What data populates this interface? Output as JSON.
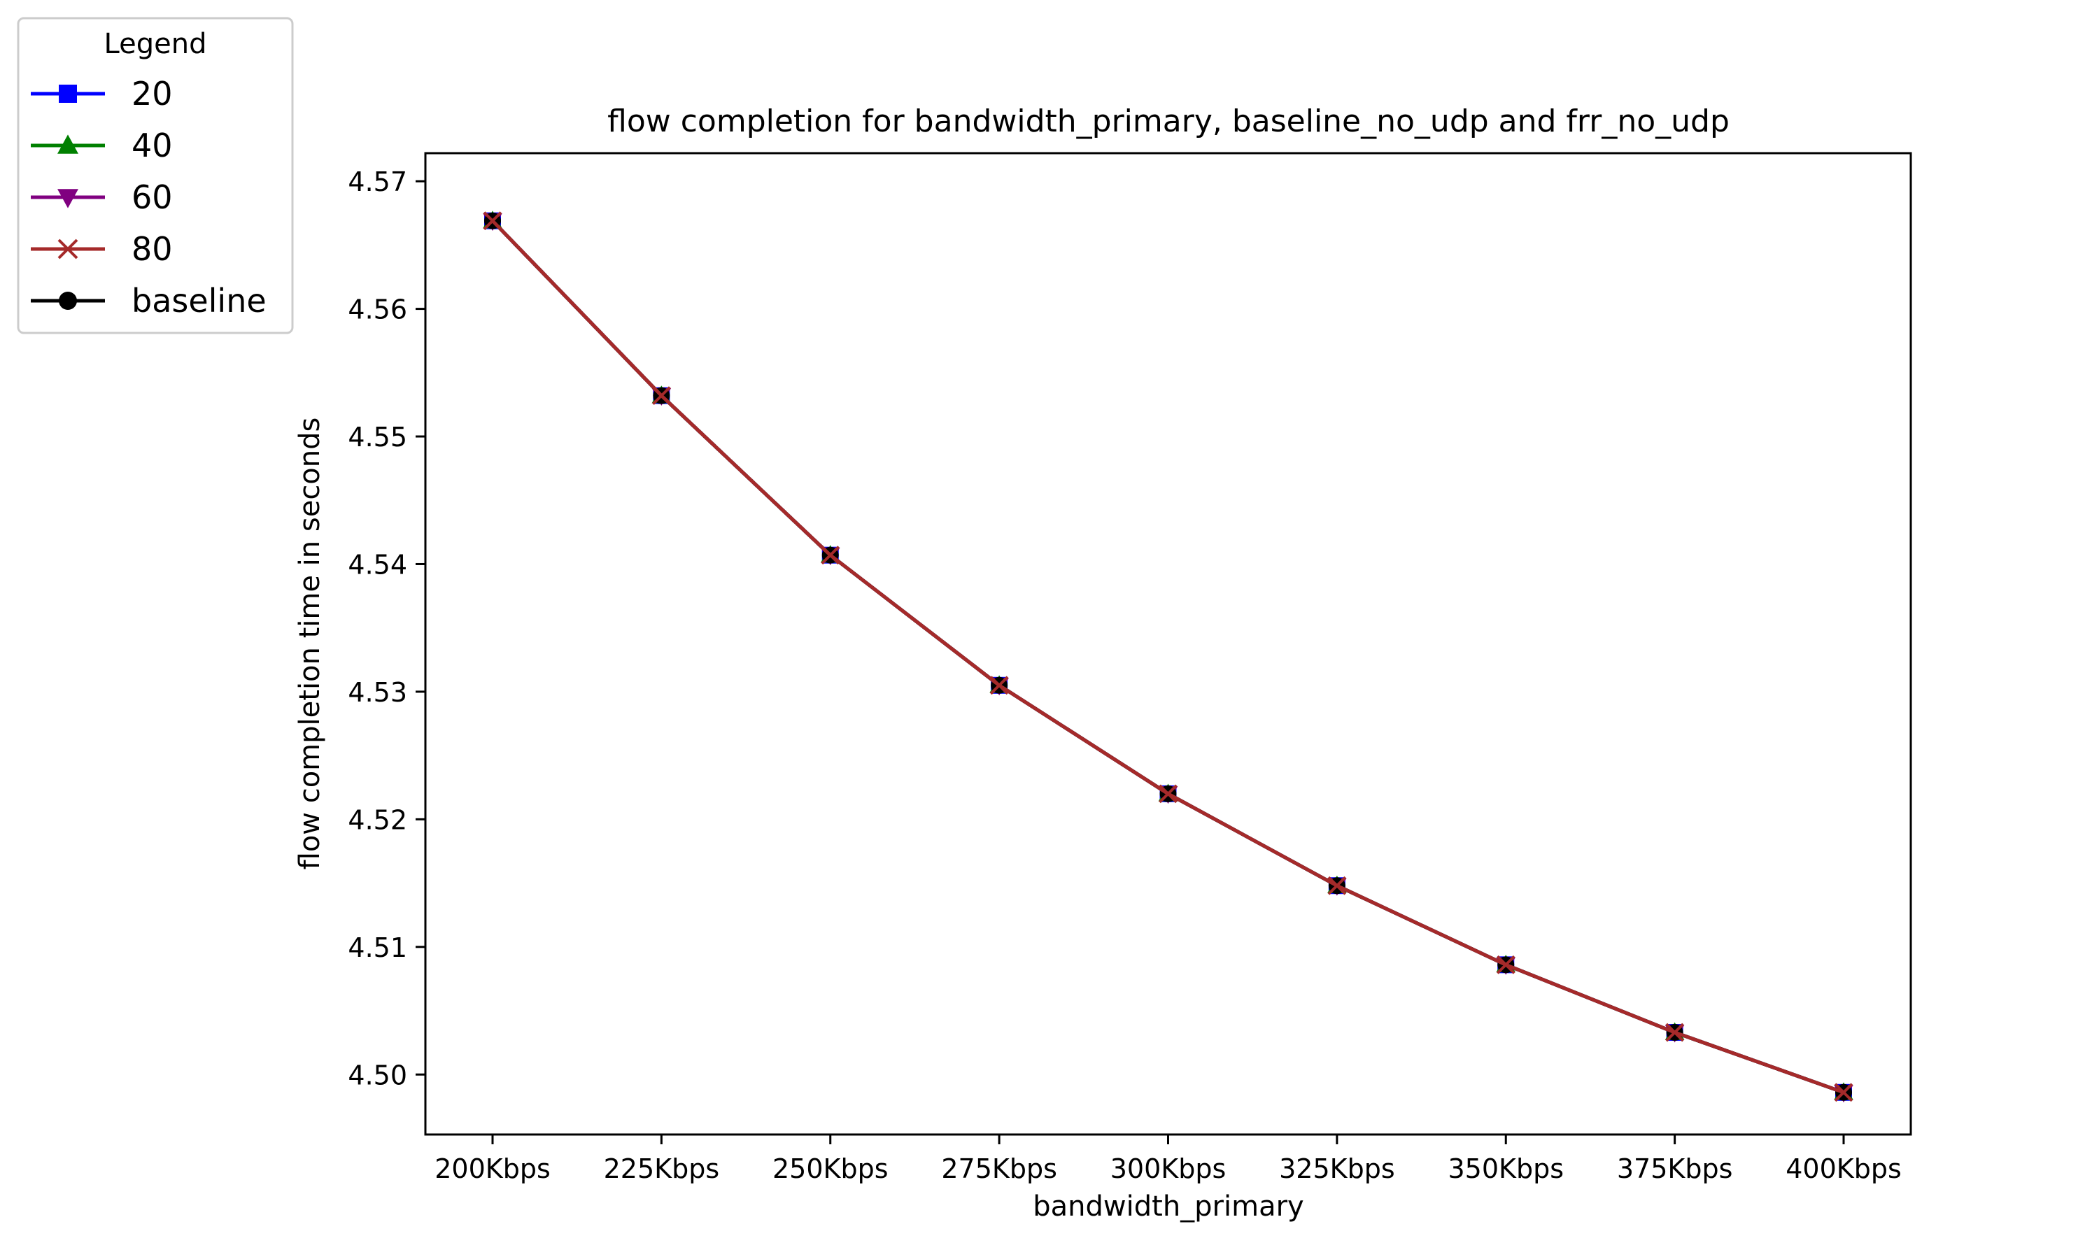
{
  "chart_data": {
    "type": "line",
    "title": "flow completion for bandwidth_primary, baseline_no_udp and frr_no_udp",
    "xlabel": "bandwidth_primary",
    "ylabel": "flow completion time in seconds",
    "categories": [
      "200Kbps",
      "225Kbps",
      "250Kbps",
      "275Kbps",
      "300Kbps",
      "325Kbps",
      "350Kbps",
      "375Kbps",
      "400Kbps"
    ],
    "ylim": [
      4.4953,
      4.5722
    ],
    "yticks": [
      "4.50",
      "4.51",
      "4.52",
      "4.53",
      "4.54",
      "4.55",
      "4.56",
      "4.57"
    ],
    "legend": {
      "title": "Legend",
      "placement": "upper-left, outside plot"
    },
    "grid": false,
    "series": [
      {
        "name": "20",
        "color": "#0000ff",
        "marker": "square",
        "values": [
          4.5669,
          4.5532,
          4.5407,
          4.5305,
          4.522,
          4.5148,
          4.5086,
          4.5033,
          4.4986
        ]
      },
      {
        "name": "40",
        "color": "#008000",
        "marker": "triangle-up",
        "values": [
          4.5669,
          4.5532,
          4.5407,
          4.5305,
          4.522,
          4.5148,
          4.5086,
          4.5033,
          4.4986
        ]
      },
      {
        "name": "60",
        "color": "#800080",
        "marker": "triangle-down",
        "values": [
          4.5669,
          4.5532,
          4.5407,
          4.5305,
          4.522,
          4.5148,
          4.5086,
          4.5033,
          4.4986
        ]
      },
      {
        "name": "80",
        "color": "#a52a2a",
        "marker": "x",
        "values": [
          4.5669,
          4.5532,
          4.5407,
          4.5305,
          4.522,
          4.5148,
          4.5086,
          4.5033,
          4.4986
        ]
      },
      {
        "name": "baseline",
        "color": "#000000",
        "marker": "circle",
        "values": [
          4.5669,
          4.5532,
          4.5407,
          4.5305,
          4.522,
          4.5148,
          4.5086,
          4.5033,
          4.4986
        ]
      }
    ]
  }
}
